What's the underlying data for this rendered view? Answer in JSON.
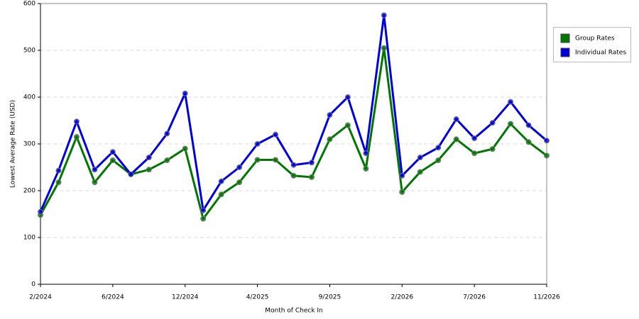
{
  "chart_data": {
    "type": "line",
    "x_label": "Month of Check In",
    "y_label": "Lowest Average Rate (USD)",
    "categories": [
      "2/2024",
      null,
      null,
      null,
      "6/2024",
      null,
      null,
      null,
      "12/2024",
      null,
      null,
      null,
      "4/2025",
      null,
      null,
      null,
      "9/2025",
      null,
      null,
      null,
      "2/2026",
      null,
      null,
      null,
      "7/2026",
      null,
      null,
      null,
      "11/2026"
    ],
    "series": [
      {
        "name": "Group Rates",
        "color": "#007700",
        "values": [
          148,
          218,
          315,
          218,
          265,
          235,
          245,
          265,
          290,
          140,
          192,
          218,
          266,
          266,
          232,
          229,
          310,
          340,
          247,
          505,
          197,
          240,
          265,
          310,
          280,
          289,
          343,
          304,
          275
        ]
      },
      {
        "name": "Individual Rates",
        "color": "#0000dd",
        "values": [
          155,
          243,
          348,
          245,
          283,
          235,
          271,
          322,
          408,
          158,
          220,
          250,
          300,
          320,
          255,
          260,
          362,
          400,
          280,
          575,
          232,
          271,
          292,
          353,
          312,
          345,
          390,
          340,
          307
        ]
      }
    ],
    "ylim": [
      0,
      600
    ],
    "yticks": [
      0,
      100,
      200,
      300,
      400,
      500,
      600
    ],
    "grid": true
  }
}
